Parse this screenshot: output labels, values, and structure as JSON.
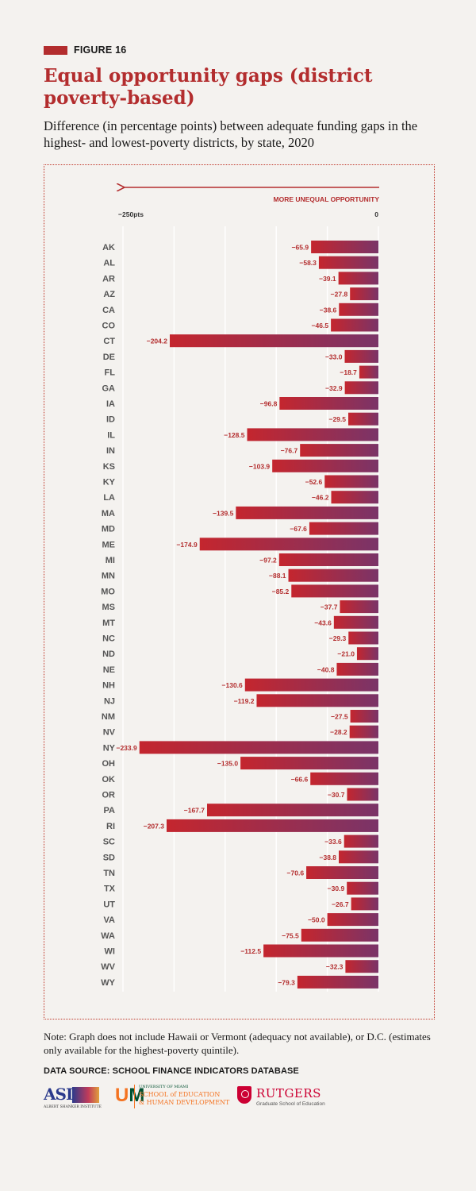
{
  "figure": {
    "label": "FIGURE 16",
    "accent": "#b32d2e"
  },
  "title": "Equal opportunity gaps (district poverty-based)",
  "subtitle": "Difference (in percentage points) between adequate funding gaps in the highest- and lowest-poverty districts, by state, 2020",
  "chart_data": {
    "type": "bar",
    "orientation": "horizontal",
    "direction_label": "MORE UNEQUAL OPPORTUNITY",
    "xlim": [
      -250,
      0
    ],
    "ticks": [
      {
        "value": -250,
        "label": "−250pts"
      },
      {
        "value": 0,
        "label": "0"
      }
    ],
    "gridlines": [
      -250,
      -200,
      -150,
      -100,
      -50,
      0
    ],
    "categories": [
      "AK",
      "AL",
      "AR",
      "AZ",
      "CA",
      "CO",
      "CT",
      "DE",
      "FL",
      "GA",
      "IA",
      "ID",
      "IL",
      "IN",
      "KS",
      "KY",
      "LA",
      "MA",
      "MD",
      "ME",
      "MI",
      "MN",
      "MO",
      "MS",
      "MT",
      "NC",
      "ND",
      "NE",
      "NH",
      "NJ",
      "NM",
      "NV",
      "NY",
      "OH",
      "OK",
      "OR",
      "PA",
      "RI",
      "SC",
      "SD",
      "TN",
      "TX",
      "UT",
      "VA",
      "WA",
      "WI",
      "WV",
      "WY"
    ],
    "values": [
      -65.9,
      -58.3,
      -39.1,
      -27.8,
      -38.6,
      -46.5,
      -204.2,
      -33.0,
      -18.7,
      -32.9,
      -96.8,
      -29.5,
      -128.5,
      -76.7,
      -103.9,
      -52.6,
      -46.2,
      -139.5,
      -67.6,
      -174.9,
      -97.2,
      -88.1,
      -85.2,
      -37.7,
      -43.6,
      -29.3,
      -21.0,
      -40.8,
      -130.6,
      -119.2,
      -27.5,
      -28.2,
      -233.9,
      -135.0,
      -66.6,
      -30.7,
      -167.7,
      -207.3,
      -33.6,
      -38.8,
      -70.6,
      -30.9,
      -26.7,
      -50.0,
      -75.5,
      -112.5,
      -32.3,
      -79.3
    ],
    "bar_gradient": [
      "#c4262e",
      "#7a3468"
    ],
    "label_color": "#b32d2e",
    "grid_on": true
  },
  "note": "Note: Graph does not include Hawaii or Vermont (adequacy not available), or D.C. (estimates only available for the highest-poverty quintile).",
  "source": "DATA SOURCE: SCHOOL FINANCE INDICATORS DATABASE",
  "logos": {
    "asi": {
      "letters": "ASI",
      "name": "ALBERT SHANKER INSTITUTE"
    },
    "um": {
      "line1": "UNIVERSITY OF MIAMI",
      "line2": "SCHOOL of EDUCATION",
      "line3": "& HUMAN DEVELOPMENT"
    },
    "rutgers": {
      "name": "RUTGERS",
      "sub": "Graduate School of Education"
    }
  }
}
